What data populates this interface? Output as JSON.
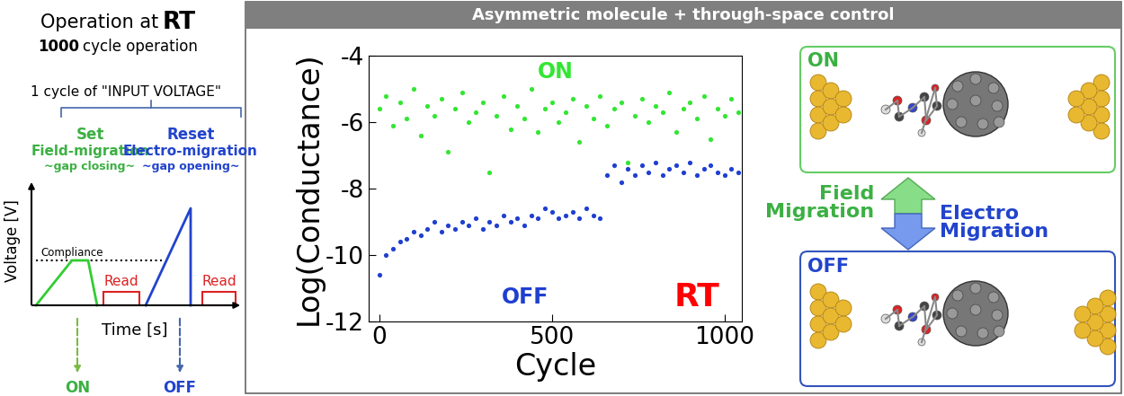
{
  "chart_data": {
    "type": "scatter",
    "x_label": "Cycle",
    "y_label": "Log(Conductance)",
    "x": [
      0,
      20,
      40,
      60,
      80,
      100,
      120,
      140,
      160,
      180,
      200,
      220,
      240,
      260,
      280,
      300,
      320,
      340,
      360,
      380,
      400,
      420,
      440,
      460,
      480,
      500,
      520,
      540,
      560,
      580,
      600,
      620,
      640,
      660,
      680,
      700,
      720,
      740,
      760,
      780,
      800,
      820,
      840,
      860,
      880,
      900,
      920,
      940,
      960,
      980,
      1000,
      1020,
      1040
    ],
    "series": [
      {
        "color": "#33e633",
        "marker": "o",
        "values": [
          -5.6,
          -5.2,
          -6.1,
          -5.4,
          -5.9,
          -5.0,
          -6.4,
          -5.5,
          -5.8,
          -5.3,
          -6.9,
          -5.6,
          -5.1,
          -6.0,
          -5.7,
          -5.4,
          -7.5,
          -5.8,
          -5.2,
          -6.2,
          -5.5,
          -5.9,
          -5.0,
          -6.3,
          -5.6,
          -5.4,
          -6.0,
          -5.7,
          -5.3,
          -6.6,
          -5.5,
          -5.9,
          -5.2,
          -6.1,
          -5.6,
          -5.4,
          -7.2,
          -5.8,
          -5.3,
          -6.0,
          -5.5,
          -5.7,
          -5.1,
          -6.3,
          -5.6,
          -5.4,
          -5.9,
          -5.2,
          -6.5,
          -5.6,
          -5.8,
          -5.3,
          -5.7
        ]
      },
      {
        "color": "#1f3fd0",
        "marker": "o",
        "values": [
          -10.6,
          -10.0,
          -9.8,
          -9.6,
          -9.5,
          -9.3,
          -9.4,
          -9.2,
          -9.0,
          -9.3,
          -9.1,
          -9.2,
          -9.0,
          -9.1,
          -8.9,
          -9.2,
          -9.0,
          -9.1,
          -8.8,
          -9.0,
          -8.9,
          -9.1,
          -8.8,
          -8.9,
          -8.6,
          -8.7,
          -8.9,
          -8.8,
          -8.7,
          -8.9,
          -8.6,
          -8.8,
          -8.9,
          -7.6,
          -7.3,
          -7.8,
          -7.4,
          -7.6,
          -7.3,
          -7.5,
          -7.2,
          -7.6,
          -7.4,
          -7.3,
          -7.5,
          -7.2,
          -7.6,
          -7.4,
          -7.3,
          -7.5,
          -7.6,
          -7.4,
          -7.5
        ]
      }
    ],
    "xlim": [
      -30,
      1050
    ],
    "xticks": [
      0,
      500,
      1000
    ],
    "ylim": [
      -12,
      -4
    ],
    "yticks": [
      -12,
      -10,
      -8,
      -6,
      -4
    ],
    "grid": false,
    "annotations": [
      {
        "text": "ON",
        "color": "#33e633"
      },
      {
        "text": "OFF",
        "color": "#1f3fd0"
      },
      {
        "text": "RT",
        "color": "#ff0000"
      }
    ]
  },
  "panel_title": "Asymmetric molecule + through-space control",
  "left_diagram": {
    "title": "Operation at",
    "title_emphasis": "RT",
    "subtitle_emphasis": "1000",
    "subtitle": "cycle operation",
    "cycle_label": "1 cycle of \"INPUT VOLTAGE\"",
    "set": {
      "name": "Set",
      "process": "Field-migration",
      "note": "~gap closing~"
    },
    "reset": {
      "name": "Reset",
      "process": "Electro-migration",
      "note": "~gap opening~"
    },
    "compliance": "Compliance",
    "read": [
      "Read",
      "Read"
    ],
    "y_label": "Voltage [V]",
    "x_label": "Time [s]",
    "results": [
      "ON",
      "OFF"
    ]
  },
  "right_diagram": {
    "on_label": "ON",
    "off_label": "OFF",
    "up_label": "Field\nMigration",
    "down_label": "Electro\nMigration"
  }
}
